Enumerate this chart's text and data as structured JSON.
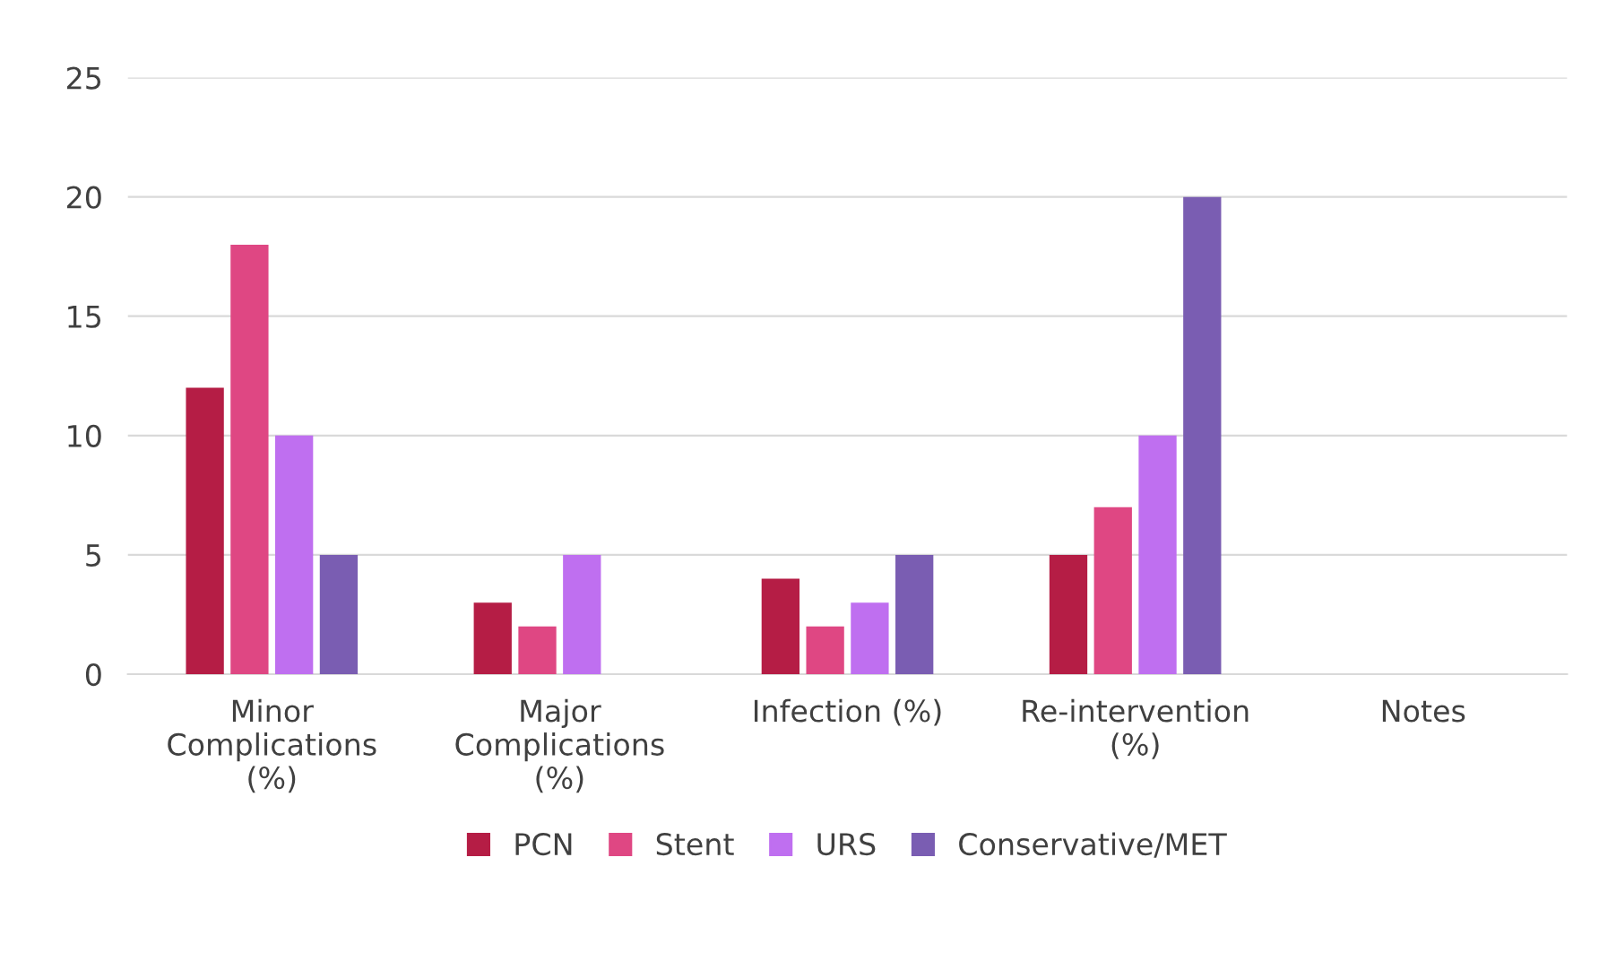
{
  "chart_data": {
    "type": "bar",
    "categories": [
      "Minor\nComplications\n(%)",
      "Major\nComplications\n(%)",
      "Infection (%)",
      "Re-intervention\n(%)",
      "Notes"
    ],
    "series": [
      {
        "name": "PCN",
        "color": "#b51d45",
        "values": [
          12,
          3,
          4,
          5,
          null
        ]
      },
      {
        "name": "Stent",
        "color": "#df4783",
        "values": [
          18,
          2,
          2,
          7,
          null
        ]
      },
      {
        "name": "URS",
        "color": "#bf6ff0",
        "values": [
          10,
          5,
          3,
          10,
          null
        ]
      },
      {
        "name": "Conservative/MET",
        "color": "#7a5db2",
        "values": [
          5,
          null,
          5,
          20,
          null
        ]
      }
    ],
    "ylim": [
      0,
      25
    ],
    "yticks": [
      0,
      5,
      10,
      15,
      20,
      25
    ],
    "grid": "y",
    "legend": "bottom"
  }
}
